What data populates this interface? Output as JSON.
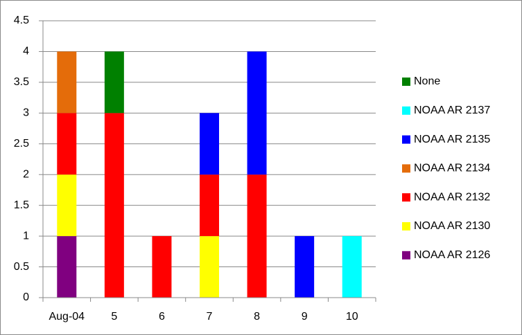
{
  "chart_data": {
    "type": "stacked-bar",
    "categories": [
      "Aug-04",
      "5",
      "6",
      "7",
      "8",
      "9",
      "10"
    ],
    "series": [
      {
        "name": "NOAA AR 2126",
        "color": "#800080",
        "values": [
          1,
          0,
          0,
          0,
          0,
          0,
          0
        ]
      },
      {
        "name": "NOAA AR 2130",
        "color": "#ffff00",
        "values": [
          1,
          0,
          0,
          1,
          0,
          0,
          0
        ]
      },
      {
        "name": "NOAA AR 2132",
        "color": "#ff0000",
        "values": [
          1,
          3,
          1,
          1,
          2,
          0,
          0
        ]
      },
      {
        "name": "NOAA AR 2134",
        "color": "#e46c0a",
        "values": [
          1,
          0,
          0,
          0,
          0,
          0,
          0
        ]
      },
      {
        "name": "NOAA AR 2135",
        "color": "#0000ff",
        "values": [
          0,
          0,
          0,
          1,
          2,
          1,
          0
        ]
      },
      {
        "name": "NOAA AR 2137",
        "color": "#00ffff",
        "values": [
          0,
          0,
          0,
          0,
          0,
          0,
          1
        ]
      },
      {
        "name": "None",
        "color": "#008000",
        "values": [
          0,
          1,
          0,
          0,
          0,
          0,
          0
        ]
      }
    ],
    "ylim": [
      0,
      4.5
    ],
    "yticks": [
      0,
      0.5,
      1,
      1.5,
      2,
      2.5,
      3,
      3.5,
      4,
      4.5
    ],
    "grid": true,
    "legend": "right"
  }
}
